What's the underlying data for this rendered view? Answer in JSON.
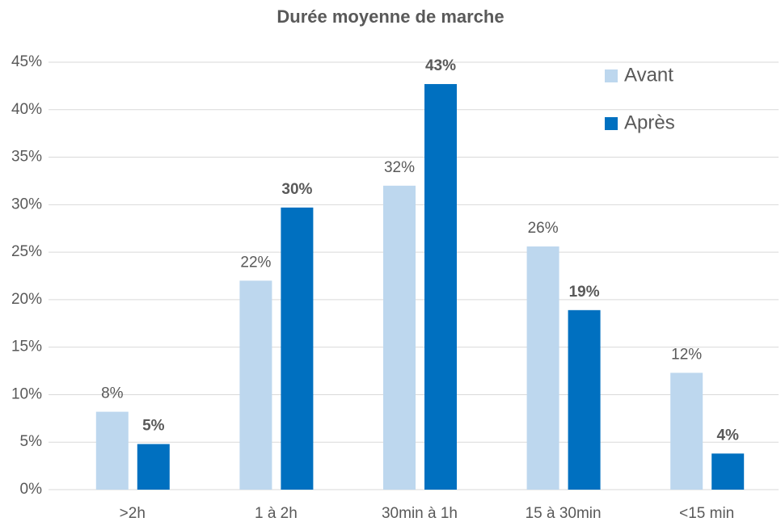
{
  "chart_data": {
    "type": "bar",
    "title": "Durée moyenne de marche",
    "categories": [
      ">2h",
      "1 à 2h",
      "30min à 1h",
      "15 à 30min",
      "<15 min"
    ],
    "series": [
      {
        "name": "Avant",
        "color": "#bdd7ee",
        "values": [
          8.2,
          22,
          32,
          25.6,
          12.3
        ],
        "value_labels": [
          "8%",
          "22%",
          "32%",
          "26%",
          "12%"
        ]
      },
      {
        "name": "Après",
        "color": "#0070c0",
        "values": [
          4.8,
          29.7,
          42.7,
          18.9,
          3.8
        ],
        "value_labels": [
          "5%",
          "30%",
          "43%",
          "19%",
          "4%"
        ]
      }
    ],
    "ylim": [
      0,
      45
    ],
    "yticks": [
      {
        "value": 0,
        "label": "0%"
      },
      {
        "value": 5,
        "label": "5%"
      },
      {
        "value": 10,
        "label": "10%"
      },
      {
        "value": 15,
        "label": "15%"
      },
      {
        "value": 20,
        "label": "20%"
      },
      {
        "value": 25,
        "label": "25%"
      },
      {
        "value": 30,
        "label": "30%"
      },
      {
        "value": 35,
        "label": "35%"
      },
      {
        "value": 40,
        "label": "40%"
      },
      {
        "value": 45,
        "label": "45%"
      }
    ],
    "grid": true,
    "legend": "top-right"
  }
}
